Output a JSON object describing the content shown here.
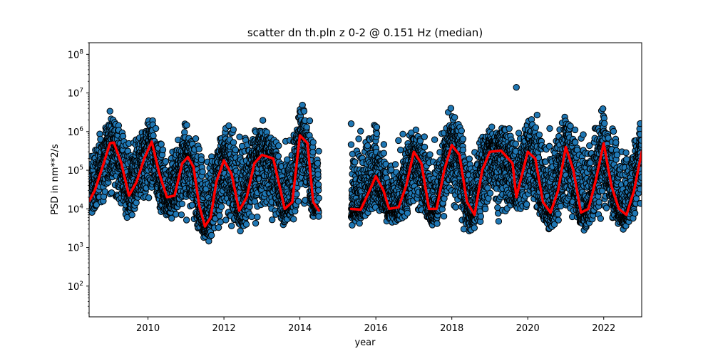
{
  "chart_data": {
    "type": "scatter",
    "title": "scatter dn th.pln z 0-2 @ 0.151 Hz (median)",
    "xlabel": "year",
    "ylabel": "PSD in nm**2/s",
    "xlim": [
      2008.45,
      2023.0
    ],
    "ylim": [
      16,
      200000000
    ],
    "yscale": "log",
    "grid": false,
    "x_ticks": [
      {
        "value": 2010,
        "label": "2010"
      },
      {
        "value": 2012,
        "label": "2012"
      },
      {
        "value": 2014,
        "label": "2014"
      },
      {
        "value": 2016,
        "label": "2016"
      },
      {
        "value": 2018,
        "label": "2018"
      },
      {
        "value": 2020,
        "label": "2020"
      },
      {
        "value": 2022,
        "label": "2022"
      }
    ],
    "y_ticks": [
      {
        "value": 100,
        "base": "10",
        "exp": "2"
      },
      {
        "value": 1000,
        "base": "10",
        "exp": "3"
      },
      {
        "value": 10000,
        "base": "10",
        "exp": "4"
      },
      {
        "value": 100000,
        "base": "10",
        "exp": "5"
      },
      {
        "value": 1000000,
        "base": "10",
        "exp": "6"
      },
      {
        "value": 10000000,
        "base": "10",
        "exp": "7"
      },
      {
        "value": 100000000,
        "base": "10",
        "exp": "8"
      }
    ],
    "series": [
      {
        "kind": "scatter",
        "color": "#1f77b4",
        "edgecolor": "#000000",
        "envelope": {
          "x": [
            2008.45,
            2009.0,
            2009.5,
            2010.0,
            2010.5,
            2011.0,
            2011.5,
            2012.0,
            2012.5,
            2013.0,
            2013.5,
            2014.0,
            2014.5
          ],
          "low": [
            5000,
            15000,
            2500,
            5000,
            3500,
            3000,
            1200,
            1300,
            2000,
            2500,
            2000,
            6000,
            5000
          ],
          "high": [
            400000,
            6000000,
            800000,
            4000000,
            500000,
            3000000,
            500000,
            2000000,
            2500000,
            3500000,
            500000,
            9000000,
            1000000
          ]
        },
        "points_segment_2": {
          "x": [
            2015.35,
            2016.0,
            2016.5,
            2017.0,
            2017.5,
            2018.0,
            2018.5,
            2019.0,
            2019.5,
            2020.0,
            2020.5,
            2021.0,
            2021.5,
            2022.0,
            2022.5,
            2023.0
          ],
          "low": [
            3500,
            5000,
            3000,
            4000,
            3000,
            4000,
            1500,
            4000,
            3000,
            6000,
            2000,
            4000,
            2000,
            4000,
            2500,
            5000
          ],
          "high": [
            1500000,
            3000000,
            500000,
            2500000,
            800000,
            6500000,
            500000,
            3000000,
            1500000,
            5000000,
            3000000,
            6000000,
            2000000,
            8000000,
            1000000,
            3000000
          ]
        },
        "outliers": [
          {
            "x": 2019.7,
            "y": 14000000
          },
          {
            "x": 2015.35,
            "y": 1600000
          }
        ]
      },
      {
        "kind": "line",
        "color": "#ff0000",
        "segments": [
          {
            "x": [
              2008.45,
              2008.6,
              2008.8,
              2009.0,
              2009.1,
              2009.3,
              2009.5,
              2009.7,
              2009.9,
              2010.1,
              2010.3,
              2010.5,
              2010.7,
              2010.9,
              2011.05,
              2011.2,
              2011.35,
              2011.5,
              2011.65,
              2011.8,
              2012.0,
              2012.2,
              2012.4,
              2012.6,
              2012.8,
              2013.0,
              2013.3,
              2013.6,
              2013.8,
              2014.0,
              2014.2,
              2014.35,
              2014.5
            ],
            "y": [
              16000,
              30000,
              120000,
              500000,
              520000,
              150000,
              22000,
              50000,
              200000,
              550000,
              80000,
              20000,
              22000,
              150000,
              220000,
              120000,
              12000,
              3500,
              6000,
              50000,
              180000,
              80000,
              9000,
              20000,
              150000,
              250000,
              200000,
              10000,
              15000,
              800000,
              500000,
              15000,
              9000
            ]
          },
          {
            "x": [
              2015.35,
              2015.6,
              2015.8,
              2016.0,
              2016.2,
              2016.35,
              2016.6,
              2016.8,
              2017.0,
              2017.2,
              2017.4,
              2017.6,
              2017.8,
              2018.0,
              2018.2,
              2018.4,
              2018.6,
              2018.8,
              2019.0,
              2019.3,
              2019.6,
              2019.7,
              2019.8,
              2020.0,
              2020.2,
              2020.4,
              2020.6,
              2020.8,
              2021.0,
              2021.2,
              2021.4,
              2021.6,
              2021.8,
              2022.0,
              2022.2,
              2022.4,
              2022.6,
              2022.8,
              2023.0
            ],
            "y": [
              10000,
              9500,
              25000,
              70000,
              30000,
              10000,
              11000,
              40000,
              300000,
              150000,
              10000,
              10000,
              100000,
              450000,
              250000,
              15000,
              7000,
              100000,
              300000,
              320000,
              150000,
              20000,
              50000,
              300000,
              200000,
              15000,
              8000,
              30000,
              400000,
              100000,
              8000,
              10000,
              60000,
              500000,
              40000,
              10000,
              7000,
              30000,
              300000
            ]
          }
        ]
      }
    ]
  }
}
